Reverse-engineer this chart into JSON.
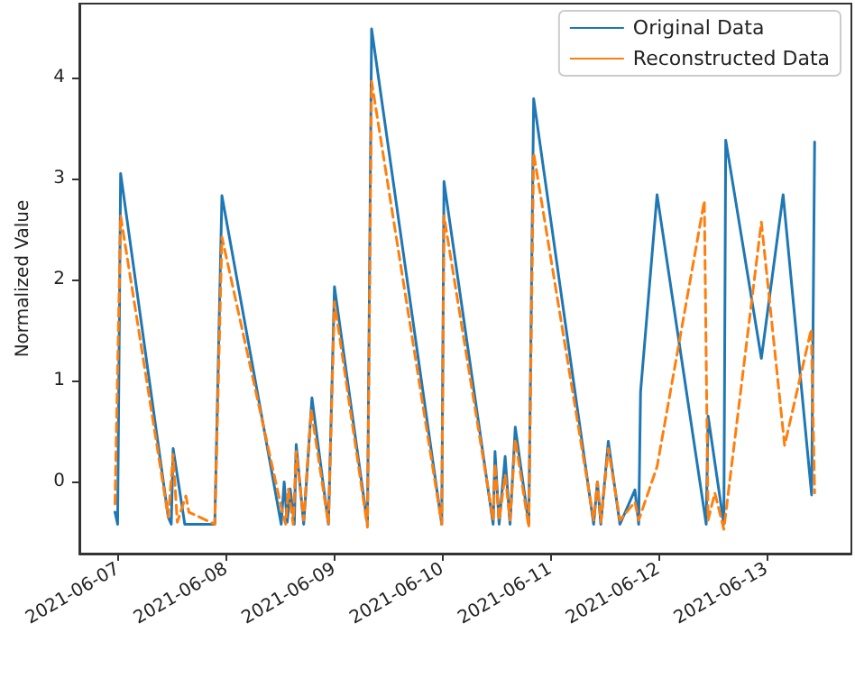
{
  "chart_data": {
    "type": "line",
    "ylabel": "Normalized Value",
    "legend": "top right",
    "grid": false,
    "marker": "none",
    "xlim": [
      "2021-06-06T15:20",
      "2021-06-13T18:50"
    ],
    "xticks": [
      "2021-06-07",
      "2021-06-08",
      "2021-06-09",
      "2021-06-10",
      "2021-06-11",
      "2021-06-12",
      "2021-06-13"
    ],
    "ylim": [
      -0.71,
      4.73
    ],
    "yticks": [
      0,
      1,
      2,
      3,
      4
    ],
    "series": [
      {
        "name": "Original Data",
        "color": "#1f77b4",
        "line_style": "solid",
        "x": [
          "2021-06-06T23:15",
          "2021-06-06T23:50",
          "2021-06-07T00:30",
          "2021-06-07T11:05",
          "2021-06-07T11:45",
          "2021-06-07T12:10",
          "2021-06-07T14:45",
          "2021-06-07T21:25",
          "2021-06-07T23:00",
          "2021-06-08T12:10",
          "2021-06-08T12:50",
          "2021-06-08T13:30",
          "2021-06-08T14:10",
          "2021-06-08T15:05",
          "2021-06-08T15:30",
          "2021-06-08T17:10",
          "2021-06-08T19:00",
          "2021-06-08T22:40",
          "2021-06-09T00:00",
          "2021-06-09T07:20",
          "2021-06-09T08:15",
          "2021-06-09T23:50",
          "2021-06-10T00:20",
          "2021-06-10T11:15",
          "2021-06-10T11:40",
          "2021-06-10T12:35",
          "2021-06-10T13:55",
          "2021-06-10T15:00",
          "2021-06-10T16:10",
          "2021-06-10T19:10",
          "2021-06-10T20:15",
          "2021-06-11T09:35",
          "2021-06-11T10:25",
          "2021-06-11T11:10",
          "2021-06-11T12:50",
          "2021-06-11T15:25",
          "2021-06-11T18:45",
          "2021-06-11T19:35",
          "2021-06-11T20:00",
          "2021-06-11T23:40",
          "2021-06-12T10:35",
          "2021-06-12T11:00",
          "2021-06-12T14:30",
          "2021-06-12T14:55",
          "2021-06-12T22:50",
          "2021-06-13T03:40",
          "2021-06-13T10:00",
          "2021-06-13T10:40"
        ],
        "values": [
          -0.3,
          -0.42,
          3.05,
          -0.35,
          -0.42,
          0.33,
          -0.42,
          -0.42,
          2.83,
          -0.42,
          0.0,
          -0.4,
          -0.07,
          -0.42,
          0.37,
          -0.42,
          0.83,
          -0.42,
          1.93,
          -0.42,
          4.48,
          -0.42,
          2.97,
          -0.42,
          0.3,
          -0.42,
          0.25,
          -0.42,
          0.54,
          -0.42,
          3.79,
          -0.42,
          0.0,
          -0.42,
          0.4,
          -0.42,
          -0.08,
          -0.42,
          0.89,
          2.84,
          -0.42,
          0.65,
          -0.42,
          3.38,
          1.22,
          2.84,
          -0.13,
          3.36
        ]
      },
      {
        "name": "Reconstructed Data",
        "color": "#ff7f0e",
        "line_style": "dashed",
        "x": [
          "2021-06-06T23:15",
          "2021-06-07T00:30",
          "2021-06-07T11:05",
          "2021-06-07T12:10",
          "2021-06-07T13:05",
          "2021-06-07T15:00",
          "2021-06-07T15:40",
          "2021-06-07T21:25",
          "2021-06-07T23:00",
          "2021-06-08T12:10",
          "2021-06-08T13:10",
          "2021-06-08T13:45",
          "2021-06-08T14:50",
          "2021-06-08T15:30",
          "2021-06-08T17:10",
          "2021-06-08T18:50",
          "2021-06-08T22:40",
          "2021-06-09T00:00",
          "2021-06-09T07:20",
          "2021-06-09T08:15",
          "2021-06-09T23:50",
          "2021-06-10T00:20",
          "2021-06-10T11:15",
          "2021-06-10T11:40",
          "2021-06-10T12:35",
          "2021-06-10T13:55",
          "2021-06-10T15:00",
          "2021-06-10T16:10",
          "2021-06-10T19:10",
          "2021-06-10T20:15",
          "2021-06-11T09:35",
          "2021-06-11T10:25",
          "2021-06-11T11:10",
          "2021-06-11T12:50",
          "2021-06-11T15:25",
          "2021-06-11T18:45",
          "2021-06-11T19:35",
          "2021-06-11T23:40",
          "2021-06-12T10:10",
          "2021-06-12T11:00",
          "2021-06-12T12:30",
          "2021-06-12T14:30",
          "2021-06-12T22:50",
          "2021-06-13T04:00",
          "2021-06-13T09:55",
          "2021-06-13T10:40"
        ],
        "values": [
          -0.22,
          2.63,
          -0.35,
          0.27,
          -0.4,
          -0.14,
          -0.3,
          -0.42,
          2.42,
          -0.25,
          -0.42,
          -0.07,
          -0.42,
          0.3,
          -0.38,
          0.71,
          -0.42,
          1.78,
          -0.45,
          3.96,
          -0.42,
          2.63,
          -0.38,
          0.18,
          -0.38,
          0.07,
          -0.38,
          0.42,
          -0.45,
          3.25,
          -0.38,
          0.0,
          -0.4,
          0.33,
          -0.38,
          -0.2,
          -0.38,
          0.15,
          2.78,
          -0.38,
          -0.11,
          -0.47,
          2.57,
          0.36,
          1.51,
          -0.11
        ]
      }
    ]
  }
}
